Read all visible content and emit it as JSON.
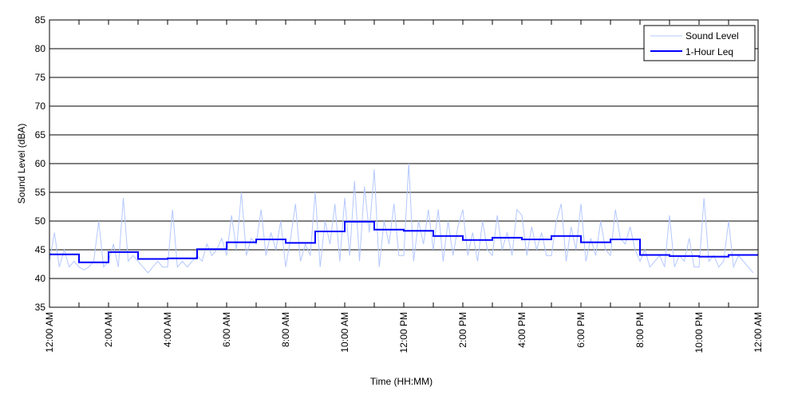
{
  "chart_data": {
    "type": "line",
    "title": "",
    "xlabel": "Time (HH:MM)",
    "ylabel": "Sound Level (dBA)",
    "ylim": [
      35,
      85
    ],
    "yticks": [
      35,
      40,
      45,
      50,
      55,
      60,
      65,
      70,
      75,
      80,
      85
    ],
    "xlim_hours": [
      0,
      24
    ],
    "xtick_labels": [
      "12:00 AM",
      "2:00 AM",
      "4:00 AM",
      "6:00 AM",
      "8:00 AM",
      "10:00 AM",
      "12:00 PM",
      "2:00 PM",
      "4:00 PM",
      "6:00 PM",
      "8:00 PM",
      "10:00 PM",
      "12:00 AM"
    ],
    "grid": "horizontal",
    "legend_position": "top-right",
    "series": [
      {
        "name": "Sound Level",
        "color": "#b4c8ff",
        "interval_minutes": 10,
        "values": [
          43,
          48,
          42,
          45,
          42,
          43,
          42,
          41.5,
          42,
          43,
          50,
          42,
          43,
          46,
          42,
          54,
          43,
          44,
          43,
          42,
          41,
          42,
          43,
          42,
          42,
          52,
          42,
          43,
          42,
          43,
          44,
          43,
          46,
          44,
          45,
          47,
          44,
          51,
          45,
          55,
          44,
          47,
          46,
          52,
          44,
          48,
          45,
          50,
          42,
          47,
          53,
          43,
          46,
          44,
          55,
          42,
          50,
          46,
          53,
          43,
          54,
          44,
          57,
          43,
          56,
          48,
          59,
          42,
          50,
          46,
          53,
          44,
          44,
          60,
          43,
          50,
          46,
          52,
          45,
          52,
          43,
          50,
          44,
          49,
          52,
          44,
          48,
          43,
          50,
          45,
          44,
          51,
          45,
          48,
          44,
          52,
          51,
          44,
          49,
          45,
          48,
          44,
          44,
          50,
          53,
          43,
          49,
          45,
          53,
          43,
          47,
          44,
          50,
          45,
          44,
          52,
          47,
          46,
          49,
          45,
          43,
          45,
          42,
          43,
          44,
          42,
          51,
          42,
          44,
          43,
          47,
          42,
          42,
          54,
          43,
          44,
          42,
          43,
          50,
          42,
          44,
          43,
          42,
          41
        ]
      },
      {
        "name": "1-Hour Leq",
        "color": "#0000ff",
        "interval_minutes": 60,
        "values": [
          44.2,
          42.8,
          44.6,
          43.4,
          43.5,
          45.1,
          46.3,
          46.8,
          46.2,
          48.2,
          49.9,
          48.5,
          48.3,
          47.4,
          46.7,
          47.1,
          46.8,
          47.4,
          46.3,
          46.8,
          44.1,
          43.9,
          43.8,
          44.1
        ]
      }
    ]
  }
}
